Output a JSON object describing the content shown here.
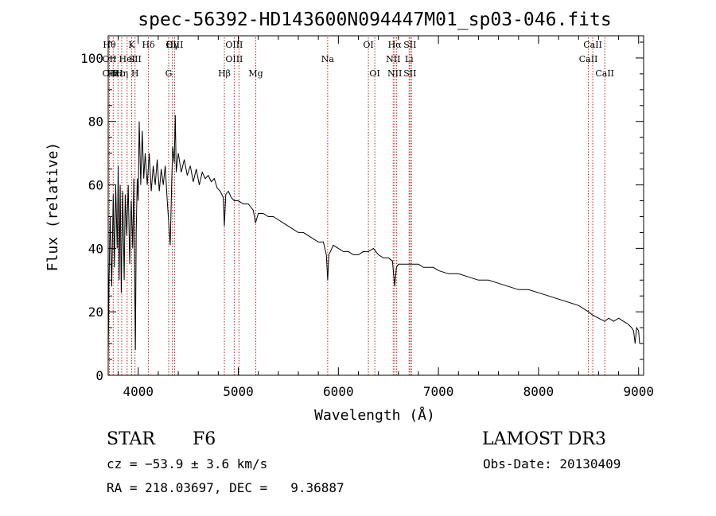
{
  "chart_data": {
    "type": "line",
    "title": "spec-56392-HD143600N094447M01_sp03-046.fits",
    "xlabel": "Wavelength (Å)",
    "ylabel": "Flux (relative)",
    "xlim": [
      3700,
      9050
    ],
    "ylim": [
      0,
      107
    ],
    "xticks": [
      4000,
      5000,
      6000,
      7000,
      8000,
      9000
    ],
    "yticks": [
      0,
      20,
      40,
      60,
      80,
      100
    ],
    "grid": false,
    "series": [
      {
        "values": [
          [
            3700,
            6
          ],
          [
            3708,
            30
          ],
          [
            3720,
            50
          ],
          [
            3735,
            28
          ],
          [
            3750,
            57
          ],
          [
            3762,
            34
          ],
          [
            3775,
            60
          ],
          [
            3790,
            40
          ],
          [
            3800,
            66
          ],
          [
            3810,
            30
          ],
          [
            3820,
            60
          ],
          [
            3830,
            26
          ],
          [
            3845,
            58
          ],
          [
            3860,
            30
          ],
          [
            3870,
            57
          ],
          [
            3885,
            44
          ],
          [
            3900,
            60
          ],
          [
            3915,
            35
          ],
          [
            3930,
            55
          ],
          [
            3945,
            40
          ],
          [
            3955,
            62
          ],
          [
            3965,
            30
          ],
          [
            3972,
            8
          ],
          [
            3980,
            45
          ],
          [
            3990,
            62
          ],
          [
            4000,
            55
          ],
          [
            4010,
            80
          ],
          [
            4025,
            60
          ],
          [
            4040,
            77
          ],
          [
            4055,
            62
          ],
          [
            4070,
            70
          ],
          [
            4090,
            60
          ],
          [
            4110,
            70
          ],
          [
            4130,
            58
          ],
          [
            4150,
            66
          ],
          [
            4170,
            60
          ],
          [
            4190,
            68
          ],
          [
            4210,
            58
          ],
          [
            4230,
            65
          ],
          [
            4250,
            60
          ],
          [
            4270,
            66
          ],
          [
            4290,
            55
          ],
          [
            4305,
            48
          ],
          [
            4320,
            41
          ],
          [
            4335,
            62
          ],
          [
            4345,
            72
          ],
          [
            4360,
            67
          ],
          [
            4370,
            82
          ],
          [
            4380,
            64
          ],
          [
            4400,
            70
          ],
          [
            4430,
            64
          ],
          [
            4460,
            68
          ],
          [
            4490,
            63
          ],
          [
            4520,
            66
          ],
          [
            4550,
            61
          ],
          [
            4580,
            65
          ],
          [
            4610,
            60
          ],
          [
            4640,
            64
          ],
          [
            4670,
            62
          ],
          [
            4700,
            63
          ],
          [
            4730,
            61
          ],
          [
            4760,
            62
          ],
          [
            4790,
            59
          ],
          [
            4820,
            58
          ],
          [
            4850,
            56
          ],
          [
            4861,
            47
          ],
          [
            4875,
            57
          ],
          [
            4900,
            58
          ],
          [
            4930,
            56
          ],
          [
            4960,
            55
          ],
          [
            5000,
            55
          ],
          [
            5050,
            54
          ],
          [
            5100,
            54
          ],
          [
            5150,
            52
          ],
          [
            5172,
            48
          ],
          [
            5200,
            51
          ],
          [
            5250,
            51
          ],
          [
            5300,
            50
          ],
          [
            5350,
            50
          ],
          [
            5400,
            49
          ],
          [
            5450,
            48
          ],
          [
            5500,
            47
          ],
          [
            5550,
            46
          ],
          [
            5600,
            45
          ],
          [
            5650,
            45
          ],
          [
            5700,
            44
          ],
          [
            5750,
            43
          ],
          [
            5800,
            42
          ],
          [
            5850,
            42
          ],
          [
            5880,
            38
          ],
          [
            5893,
            30
          ],
          [
            5905,
            38
          ],
          [
            5950,
            41
          ],
          [
            6000,
            40
          ],
          [
            6050,
            39
          ],
          [
            6100,
            39
          ],
          [
            6150,
            38
          ],
          [
            6200,
            38
          ],
          [
            6250,
            39
          ],
          [
            6300,
            39
          ],
          [
            6350,
            40
          ],
          [
            6400,
            38
          ],
          [
            6450,
            37
          ],
          [
            6500,
            37
          ],
          [
            6540,
            36
          ],
          [
            6563,
            28
          ],
          [
            6580,
            34
          ],
          [
            6600,
            35
          ],
          [
            6650,
            35
          ],
          [
            6700,
            35
          ],
          [
            6750,
            35
          ],
          [
            6800,
            35
          ],
          [
            6850,
            34
          ],
          [
            6900,
            34
          ],
          [
            6950,
            34
          ],
          [
            7000,
            33
          ],
          [
            7100,
            32
          ],
          [
            7200,
            32
          ],
          [
            7300,
            31
          ],
          [
            7400,
            30
          ],
          [
            7500,
            30
          ],
          [
            7600,
            29
          ],
          [
            7700,
            28
          ],
          [
            7800,
            27
          ],
          [
            7900,
            27
          ],
          [
            8000,
            26
          ],
          [
            8100,
            25
          ],
          [
            8200,
            24
          ],
          [
            8300,
            23
          ],
          [
            8400,
            22
          ],
          [
            8450,
            21
          ],
          [
            8500,
            20
          ],
          [
            8540,
            19
          ],
          [
            8600,
            18
          ],
          [
            8662,
            17
          ],
          [
            8700,
            18
          ],
          [
            8750,
            17
          ],
          [
            8800,
            18
          ],
          [
            8850,
            17
          ],
          [
            8900,
            16
          ],
          [
            8930,
            15
          ],
          [
            8950,
            14
          ],
          [
            8965,
            10
          ],
          [
            8980,
            15
          ],
          [
            9000,
            14
          ],
          [
            9010,
            10
          ]
        ]
      }
    ],
    "lines": [
      {
        "x": 3712,
        "labels": [
          "Hθ",
          "OII",
          "OII"
        ]
      },
      {
        "x": 3750,
        "labels": [
          "",
          "",
          "Hε"
        ]
      },
      {
        "x": 3798,
        "labels": [
          "",
          "",
          "Hε"
        ]
      },
      {
        "x": 3835,
        "labels": [
          "",
          "",
          "Hη"
        ]
      },
      {
        "x": 3889,
        "labels": [
          "",
          "HeI",
          ""
        ]
      },
      {
        "x": 3934,
        "labels": [
          "K",
          "",
          ""
        ]
      },
      {
        "x": 3968,
        "labels": [
          "",
          "SII",
          "H"
        ]
      },
      {
        "x": 4102,
        "labels": [
          "Hδ",
          "",
          ""
        ]
      },
      {
        "x": 4304,
        "labels": [
          "",
          "",
          "G"
        ]
      },
      {
        "x": 4341,
        "labels": [
          "Hγ",
          "",
          ""
        ]
      },
      {
        "x": 4363,
        "labels": [
          "OIII",
          "",
          ""
        ]
      },
      {
        "x": 4861,
        "labels": [
          "",
          "",
          "Hβ"
        ]
      },
      {
        "x": 4959,
        "labels": [
          "OIII",
          "OIII",
          ""
        ]
      },
      {
        "x": 5007,
        "labels": [
          "",
          "",
          ""
        ]
      },
      {
        "x": 5175,
        "labels": [
          "",
          "",
          "Mg"
        ]
      },
      {
        "x": 5893,
        "labels": [
          "",
          "Na",
          ""
        ]
      },
      {
        "x": 6300,
        "labels": [
          "OI",
          "",
          ""
        ]
      },
      {
        "x": 6364,
        "labels": [
          "",
          "",
          "OI"
        ]
      },
      {
        "x": 6548,
        "labels": [
          "",
          "NII",
          ""
        ]
      },
      {
        "x": 6563,
        "labels": [
          "Hα",
          "",
          "NII"
        ]
      },
      {
        "x": 6583,
        "labels": [
          "",
          "",
          ""
        ]
      },
      {
        "x": 6707,
        "labels": [
          "",
          "Li",
          ""
        ]
      },
      {
        "x": 6716,
        "labels": [
          "SII",
          "",
          "SII"
        ]
      },
      {
        "x": 6731,
        "labels": [
          "",
          "",
          ""
        ]
      },
      {
        "x": 8498,
        "labels": [
          "",
          "CaII",
          ""
        ]
      },
      {
        "x": 8542,
        "labels": [
          "CaII",
          "",
          ""
        ]
      },
      {
        "x": 8662,
        "labels": [
          "",
          "",
          "CaII"
        ]
      }
    ]
  },
  "footer": {
    "object_class": "STAR",
    "subclass": "F6",
    "survey": "LAMOST DR3",
    "cz": "cz = −53.9 ± 3.6 km/s",
    "obs_date": "Obs-Date: 20130409",
    "coords": "RA = 218.03697, DEC =   9.36887"
  },
  "colors": {
    "spectrum": "#000000",
    "line_markers": "#b22222",
    "axes": "#000000"
  }
}
